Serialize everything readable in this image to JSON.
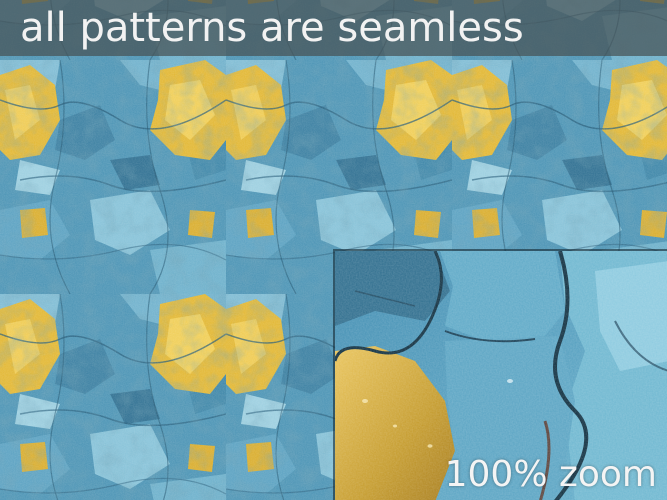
{
  "title": "all patterns are seamless",
  "zoom_caption": "100% zoom",
  "colors": {
    "paint_blue": "#4e9cc0",
    "paint_blue_light": "#8ec9dd",
    "paint_blue_dark": "#1f5f7e",
    "paint_yellow": "#e7bd36",
    "paint_yellow_dark": "#b58a1f",
    "banner": "#465254"
  }
}
